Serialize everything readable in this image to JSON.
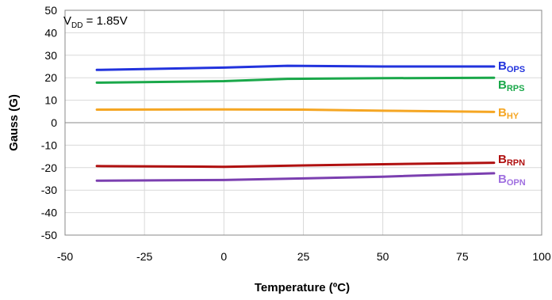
{
  "chart_data": {
    "type": "line",
    "xlabel": "Temperature (ºC)",
    "ylabel": "Gauss  (G)",
    "xlim": [
      -50,
      100
    ],
    "ylim": [
      -50,
      50
    ],
    "xticks": [
      -50,
      -25,
      0,
      25,
      50,
      75,
      100
    ],
    "yticks": [
      50,
      40,
      30,
      20,
      10,
      0,
      -10,
      -20,
      -30,
      -40,
      -50
    ],
    "grid": true,
    "annotation": {
      "main": "V",
      "sub": "DD",
      "rest": " = 1.85V"
    },
    "series": [
      {
        "name_main": "B",
        "name_sub": "OPS",
        "color": "#2233dd",
        "x": [
          -40,
          0,
          20,
          50,
          85
        ],
        "y": [
          23.5,
          24.5,
          25.3,
          25.0,
          25.0
        ]
      },
      {
        "name_main": "B",
        "name_sub": "RPS",
        "color": "#1aa84a",
        "x": [
          -40,
          0,
          20,
          50,
          85
        ],
        "y": [
          17.8,
          18.5,
          19.5,
          19.8,
          20.0
        ]
      },
      {
        "name_main": "B",
        "name_sub": "HY",
        "color": "#f5a623",
        "x": [
          -40,
          0,
          25,
          50,
          85
        ],
        "y": [
          5.8,
          5.9,
          5.8,
          5.3,
          4.8
        ]
      },
      {
        "name_main": "B",
        "name_sub": "RPN",
        "color": "#b01010",
        "x": [
          -40,
          0,
          25,
          50,
          85
        ],
        "y": [
          -19.3,
          -19.6,
          -19.0,
          -18.5,
          -17.8
        ]
      },
      {
        "name_main": "B",
        "name_sub": "OPN",
        "color": "#7b3fb0",
        "x": [
          -40,
          0,
          25,
          50,
          85
        ],
        "y": [
          -25.8,
          -25.5,
          -24.8,
          -24.0,
          -22.5
        ]
      }
    ],
    "label_colors": [
      "#2233dd",
      "#1aa84a",
      "#f5a623",
      "#b01010",
      "#a070e0"
    ]
  }
}
